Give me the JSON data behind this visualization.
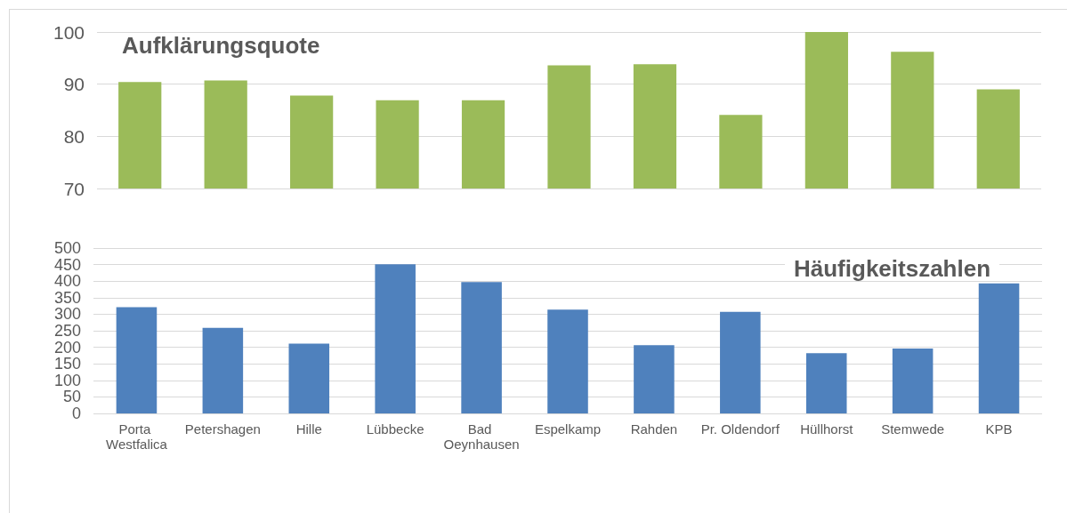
{
  "chart_data": [
    {
      "type": "bar",
      "title": "Aufklärungsquote",
      "categories": [
        "Porta Westfalica",
        "Petershagen",
        "Hille",
        "Lübbecke",
        "Bad Oeynhausen",
        "Espelkamp",
        "Rahden",
        "Pr. Oldendorf",
        "Hüllhorst",
        "Stemwede",
        "KPB"
      ],
      "values": [
        90.4,
        90.7,
        87.8,
        86.9,
        86.9,
        93.6,
        93.8,
        84.1,
        100,
        96.2,
        89.0
      ],
      "color": "#9bbb59",
      "ylim": [
        70,
        100
      ],
      "yticks": [
        70,
        80,
        90,
        100
      ],
      "grid": "y",
      "tick_labels": "y"
    },
    {
      "type": "bar",
      "title": "Häufigkeitszahlen",
      "categories": [
        "Porta Westfalica",
        "Petershagen",
        "Hille",
        "Lübbecke",
        "Bad Oeynhausen",
        "Espelkamp",
        "Rahden",
        "Pr. Oldendorf",
        "Hüllhorst",
        "Stemwede",
        "KPB"
      ],
      "values": [
        321,
        259,
        211,
        451,
        397,
        314,
        206,
        307,
        182,
        196,
        393
      ],
      "color": "#4f81bd",
      "ylim": [
        0,
        500
      ],
      "yticks": [
        0,
        50,
        100,
        150,
        200,
        250,
        300,
        350,
        400,
        450,
        500
      ],
      "grid": "y"
    }
  ]
}
